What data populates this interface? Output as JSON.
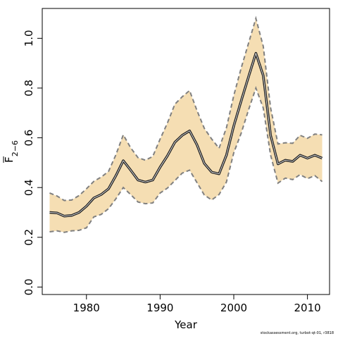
{
  "source_note": "stockassessment.org, turbot-qt-01, r3818",
  "colors": {
    "band_fill": "#f5deb3",
    "bound_line": "#808080",
    "estimate_line": "#222222",
    "estimate_halo": "#ffffff",
    "frame": "#000000"
  },
  "chart_data": {
    "type": "line",
    "title": "",
    "xlabel": "Year",
    "ylabel_main": "F",
    "ylabel_sub": "2−6",
    "xlim": [
      1974,
      2013
    ],
    "ylim": [
      -0.03,
      1.12
    ],
    "x_ticks": [
      1980,
      1990,
      2000,
      2010
    ],
    "x_tick_labels": [
      "1980",
      "1990",
      "2000",
      "2010"
    ],
    "y_ticks": [
      0.0,
      0.2,
      0.4,
      0.6,
      0.8,
      1.0
    ],
    "y_tick_labels": [
      "0.0",
      "0.2",
      "0.4",
      "0.6",
      "0.8",
      "1.0"
    ],
    "grid": false,
    "x": [
      1975,
      1976,
      1977,
      1978,
      1979,
      1980,
      1981,
      1982,
      1983,
      1984,
      1985,
      1986,
      1987,
      1988,
      1989,
      1990,
      1991,
      1992,
      1993,
      1994,
      1995,
      1996,
      1997,
      1998,
      1999,
      2000,
      2001,
      2002,
      2003,
      2004,
      2005,
      2006,
      2007,
      2008,
      2009,
      2010,
      2011,
      2012
    ],
    "series": [
      {
        "values": [
          0.3,
          0.298,
          0.285,
          0.288,
          0.3,
          0.325,
          0.358,
          0.372,
          0.395,
          0.448,
          0.508,
          0.47,
          0.43,
          0.422,
          0.43,
          0.482,
          0.528,
          0.582,
          0.61,
          0.628,
          0.572,
          0.497,
          0.462,
          0.455,
          0.53,
          0.648,
          0.748,
          0.845,
          0.94,
          0.85,
          0.61,
          0.495,
          0.51,
          0.505,
          0.53,
          0.518,
          0.53,
          0.518
        ]
      },
      {
        "values": [
          0.378,
          0.366,
          0.348,
          0.35,
          0.368,
          0.395,
          0.425,
          0.442,
          0.465,
          0.532,
          0.612,
          0.56,
          0.52,
          0.51,
          0.525,
          0.595,
          0.66,
          0.735,
          0.765,
          0.79,
          0.71,
          0.638,
          0.595,
          0.558,
          0.64,
          0.77,
          0.88,
          0.98,
          1.08,
          0.968,
          0.72,
          0.575,
          0.58,
          0.578,
          0.61,
          0.598,
          0.615,
          0.612
        ]
      },
      {
        "values": [
          0.222,
          0.226,
          0.22,
          0.226,
          0.228,
          0.238,
          0.282,
          0.292,
          0.315,
          0.355,
          0.4,
          0.372,
          0.342,
          0.335,
          0.338,
          0.378,
          0.398,
          0.428,
          0.458,
          0.47,
          0.42,
          0.37,
          0.35,
          0.372,
          0.422,
          0.54,
          0.618,
          0.712,
          0.8,
          0.72,
          0.53,
          0.418,
          0.438,
          0.432,
          0.452,
          0.436,
          0.448,
          0.424
        ]
      }
    ]
  }
}
